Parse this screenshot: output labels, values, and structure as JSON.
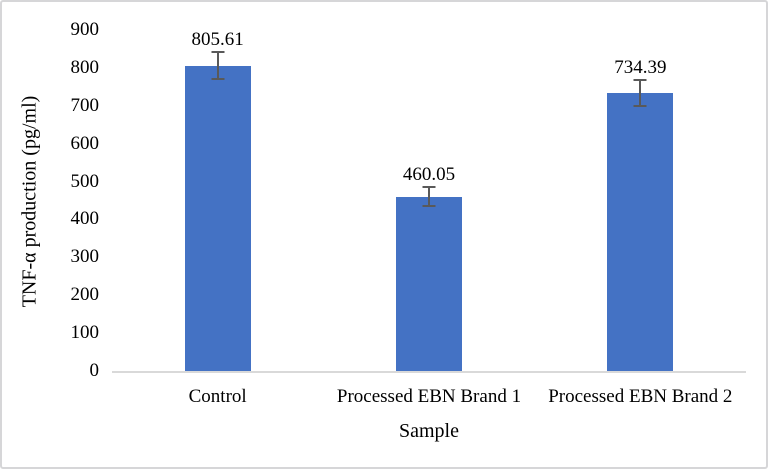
{
  "chart_data": {
    "type": "bar",
    "title": "",
    "xlabel": "Sample",
    "ylabel": "TNF-α production (pg/ml)",
    "categories": [
      "Control",
      "Processed EBN Brand 1",
      "Processed EBN Brand 2"
    ],
    "values": [
      805.61,
      460.05,
      734.39
    ],
    "data_labels": [
      "805.61",
      "460.05",
      "734.39"
    ],
    "errors": [
      36,
      25,
      35
    ],
    "ylim": [
      0,
      900
    ],
    "yticks": [
      0,
      100,
      200,
      300,
      400,
      500,
      600,
      700,
      800,
      900
    ],
    "grid": false,
    "legend_position": "none",
    "bar_color": "#4472C4",
    "error_bar_color": "#595959",
    "axis_line_color": "#D9D9D9",
    "figure_border_color": "#D6D6D8",
    "text_color": "#000000"
  }
}
